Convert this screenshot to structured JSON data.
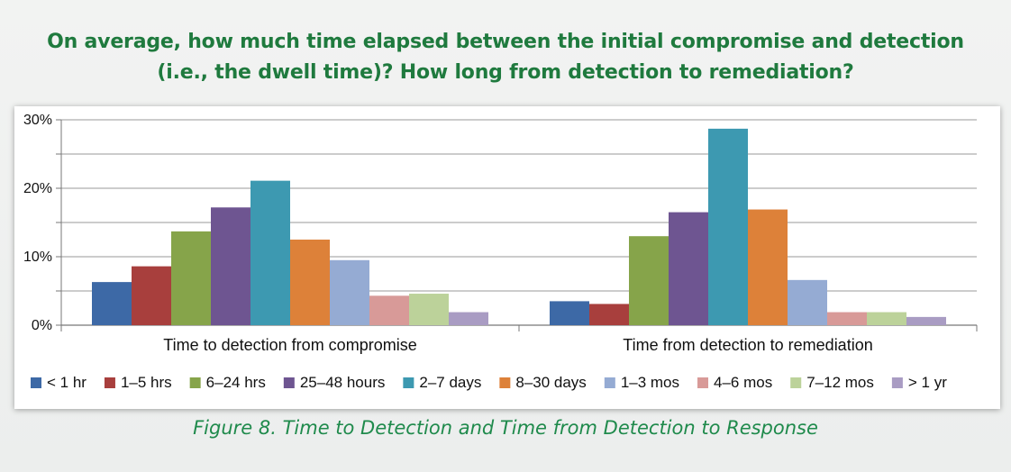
{
  "title": {
    "line1": "On average, how much time elapsed between the initial compromise and detection",
    "line2": "(i.e., the dwell time)? How long from detection to remediation?"
  },
  "caption": "Figure 8. Time to Detection and Time from Detection to Response",
  "chart_data": {
    "type": "bar",
    "categories": [
      "Time to detection from compromise",
      "Time from detection to remediation"
    ],
    "series": [
      {
        "name": "< 1 hr",
        "color": "#3d69a6",
        "values": [
          6.3,
          3.5
        ]
      },
      {
        "name": "1–5 hrs",
        "color": "#a83f3d",
        "values": [
          8.6,
          3.1
        ]
      },
      {
        "name": "6–24 hrs",
        "color": "#86a44a",
        "values": [
          13.7,
          13.0
        ]
      },
      {
        "name": "25–48 hours",
        "color": "#6e5591",
        "values": [
          17.2,
          16.5
        ]
      },
      {
        "name": "2–7 days",
        "color": "#3d99b1",
        "values": [
          21.1,
          28.7
        ]
      },
      {
        "name": "8–30 days",
        "color": "#dd8139",
        "values": [
          12.5,
          16.9
        ]
      },
      {
        "name": "1–3 mos",
        "color": "#95abd3",
        "values": [
          9.5,
          6.6
        ]
      },
      {
        "name": "4–6 mos",
        "color": "#d89a98",
        "values": [
          4.3,
          1.9
        ]
      },
      {
        "name": "7–12 mos",
        "color": "#bcd29a",
        "values": [
          4.6,
          1.9
        ]
      },
      {
        "name": "> 1 yr",
        "color": "#a99cc3",
        "values": [
          1.9,
          1.2
        ]
      }
    ],
    "y_ticks": [
      "0%",
      "10%",
      "20%",
      "30%"
    ],
    "ylim": [
      0,
      30
    ],
    "grid": true,
    "legend": "bottom"
  }
}
